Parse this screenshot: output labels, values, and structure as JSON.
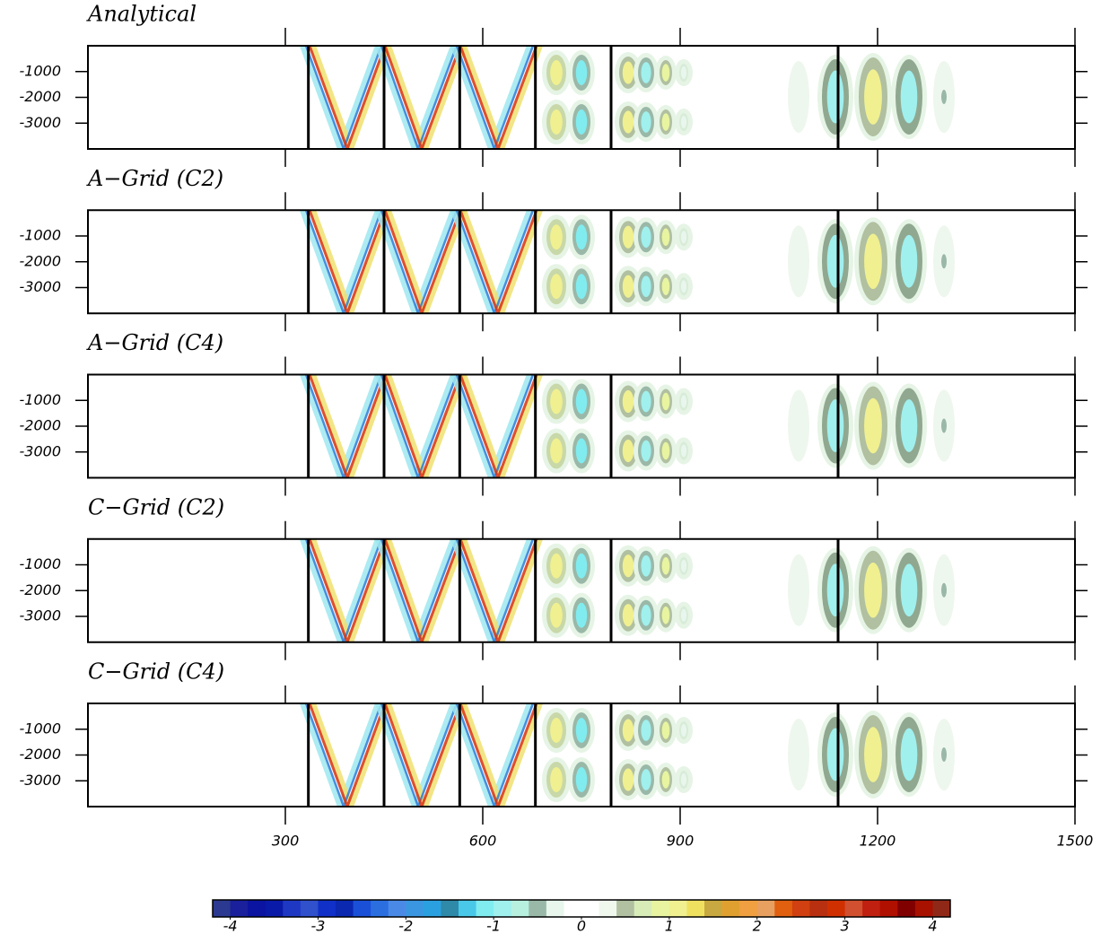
{
  "chart_data": [
    {
      "type": "contour",
      "title": "Analytical",
      "xlim": [
        0,
        1500
      ],
      "ylim": [
        -4000,
        0
      ],
      "xticks": [
        300,
        600,
        900,
        1200,
        1500
      ],
      "yticks": [
        -1000,
        -2000,
        -3000
      ],
      "vlines": [
        335,
        450,
        565,
        680,
        795,
        1140
      ]
    },
    {
      "type": "contour",
      "title": "A−Grid (C2)",
      "xlim": [
        0,
        1500
      ],
      "ylim": [
        -4000,
        0
      ],
      "xticks": [
        300,
        600,
        900,
        1200,
        1500
      ],
      "yticks": [
        -1000,
        -2000,
        -3000
      ],
      "vlines": [
        335,
        450,
        565,
        680,
        795,
        1140
      ]
    },
    {
      "type": "contour",
      "title": "A−Grid (C4)",
      "xlim": [
        0,
        1500
      ],
      "ylim": [
        -4000,
        0
      ],
      "xticks": [
        300,
        600,
        900,
        1200,
        1500
      ],
      "yticks": [
        -1000,
        -2000,
        -3000
      ],
      "vlines": [
        335,
        450,
        565,
        680,
        795,
        1140
      ]
    },
    {
      "type": "contour",
      "title": "C−Grid (C2)",
      "xlim": [
        0,
        1500
      ],
      "ylim": [
        -4000,
        0
      ],
      "xticks": [
        300,
        600,
        900,
        1200,
        1500
      ],
      "yticks": [
        -1000,
        -2000,
        -3000
      ],
      "vlines": [
        335,
        450,
        565,
        680,
        795,
        1140
      ]
    },
    {
      "type": "contour",
      "title": "C−Grid (C4)",
      "xlim": [
        0,
        1500
      ],
      "ylim": [
        -4000,
        0
      ],
      "xticks": [
        300,
        600,
        900,
        1200,
        1500
      ],
      "yticks": [
        -1000,
        -2000,
        -3000
      ],
      "vlines": [
        335,
        450,
        565,
        680,
        795,
        1140
      ]
    },
    {
      "type": "colorbar",
      "lim": [
        -4.2,
        4.2
      ],
      "ticks": [
        -4,
        -3,
        -2,
        -1,
        0,
        1,
        2,
        3,
        4
      ],
      "colors": [
        "#2b3990",
        "#1a1f9c",
        "#0a14a0",
        "#0a1aa8",
        "#1f38c4",
        "#3050cc",
        "#1030c8",
        "#0a28b0",
        "#1a50d8",
        "#2a6ee0",
        "#4a8ae6",
        "#3a96e0",
        "#2aa0e0",
        "#2e8aa8",
        "#4ac8e8",
        "#80ecf0",
        "#a0f0ee",
        "#b8f0e0",
        "#9ab8a8",
        "#e8f6ee",
        "#ffffff",
        "#ffffff",
        "#f0f8ee",
        "#b0c0a0",
        "#d8ecb8",
        "#e8f4a0",
        "#f0f090",
        "#f0e060",
        "#c8a840",
        "#e0a030",
        "#f0a040",
        "#e8a060",
        "#e06010",
        "#d04010",
        "#b83010",
        "#d03000",
        "#d05030",
        "#c02010",
        "#b01000",
        "#800000",
        "#a81000",
        "#902818"
      ]
    }
  ]
}
